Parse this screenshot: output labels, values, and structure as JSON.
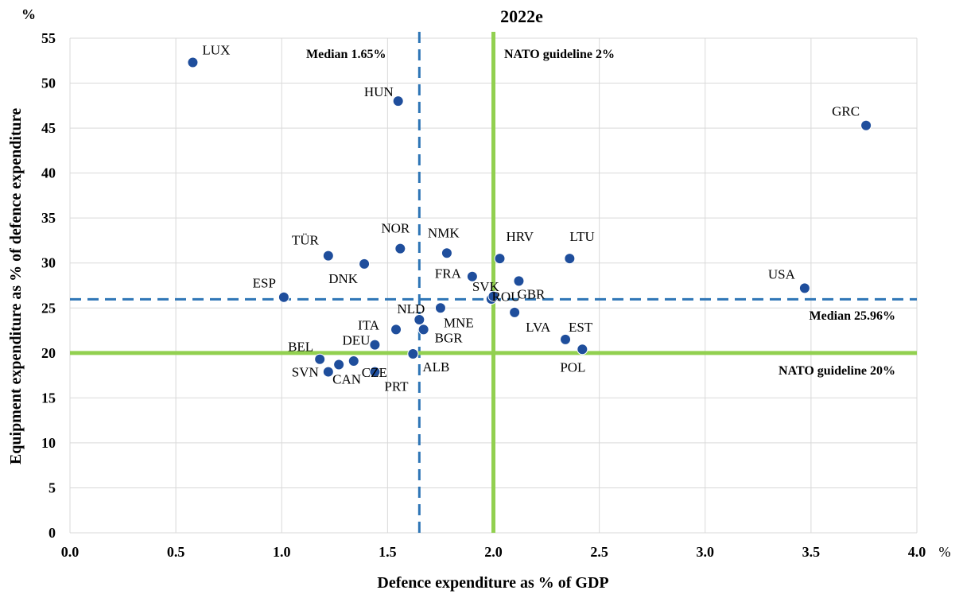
{
  "chart_data": {
    "type": "scatter",
    "title": "2022e",
    "xlabel": "Defence expenditure as % of GDP",
    "ylabel": "Equipment expenditure as % of defence expenditure",
    "x_unit": "%",
    "y_unit": "%",
    "xlim": [
      0.0,
      4.0
    ],
    "ylim": [
      0,
      55
    ],
    "x_ticks": [
      "0.0",
      "0.5",
      "1.0",
      "1.5",
      "2.0",
      "2.5",
      "3.0",
      "3.5",
      "4.0"
    ],
    "y_ticks": [
      "0",
      "5",
      "10",
      "15",
      "20",
      "25",
      "30",
      "35",
      "40",
      "45",
      "50",
      "55"
    ],
    "grid": true,
    "marker_color": "#1f4e9c",
    "points": [
      {
        "label": "LUX",
        "x": 0.58,
        "y": 52.3
      },
      {
        "label": "HUN",
        "x": 1.55,
        "y": 48.0
      },
      {
        "label": "GRC",
        "x": 3.76,
        "y": 45.3
      },
      {
        "label": "TÜR",
        "x": 1.22,
        "y": 30.8
      },
      {
        "label": "NOR",
        "x": 1.56,
        "y": 31.6
      },
      {
        "label": "DNK",
        "x": 1.39,
        "y": 29.9
      },
      {
        "label": "NMK",
        "x": 1.78,
        "y": 31.1
      },
      {
        "label": "HRV",
        "x": 2.03,
        "y": 30.5
      },
      {
        "label": "LTU",
        "x": 2.36,
        "y": 30.5
      },
      {
        "label": "FRA",
        "x": 1.9,
        "y": 28.5
      },
      {
        "label": "GBR",
        "x": 2.12,
        "y": 28.0
      },
      {
        "label": "USA",
        "x": 3.47,
        "y": 27.2
      },
      {
        "label": "ESP",
        "x": 1.01,
        "y": 26.2
      },
      {
        "label": "SVK",
        "x": 1.99,
        "y": 26.0
      },
      {
        "label": "ROU",
        "x": 2.0,
        "y": 26.3
      },
      {
        "label": "MNE",
        "x": 1.75,
        "y": 25.0
      },
      {
        "label": "LVA",
        "x": 2.1,
        "y": 24.5
      },
      {
        "label": "NLD",
        "x": 1.65,
        "y": 23.7
      },
      {
        "label": "ITA",
        "x": 1.54,
        "y": 22.6
      },
      {
        "label": "BGR",
        "x": 1.67,
        "y": 22.6
      },
      {
        "label": "EST",
        "x": 2.34,
        "y": 21.5
      },
      {
        "label": "DEU",
        "x": 1.44,
        "y": 20.9
      },
      {
        "label": "POL",
        "x": 2.42,
        "y": 20.4
      },
      {
        "label": "ALB",
        "x": 1.62,
        "y": 19.9
      },
      {
        "label": "BEL",
        "x": 1.18,
        "y": 19.3
      },
      {
        "label": "CZE",
        "x": 1.34,
        "y": 19.1
      },
      {
        "label": "CAN",
        "x": 1.27,
        "y": 18.7
      },
      {
        "label": "SVN",
        "x": 1.22,
        "y": 17.9
      },
      {
        "label": "PRT",
        "x": 1.44,
        "y": 17.9
      }
    ],
    "reference_lines": [
      {
        "name": "median_x",
        "orientation": "vertical",
        "value": 1.65,
        "style": "dashed",
        "color": "#2e75b6",
        "label": "Median 1.65%"
      },
      {
        "name": "nato_x",
        "orientation": "vertical",
        "value": 2.0,
        "style": "solid",
        "color": "#92d050",
        "label": "NATO guideline 2%"
      },
      {
        "name": "median_y",
        "orientation": "horizontal",
        "value": 25.96,
        "style": "dashed",
        "color": "#2e75b6",
        "label": "Median 25.96%"
      },
      {
        "name": "nato_y",
        "orientation": "horizontal",
        "value": 20,
        "style": "solid",
        "color": "#92d050",
        "label": "NATO guideline 20%"
      }
    ]
  }
}
